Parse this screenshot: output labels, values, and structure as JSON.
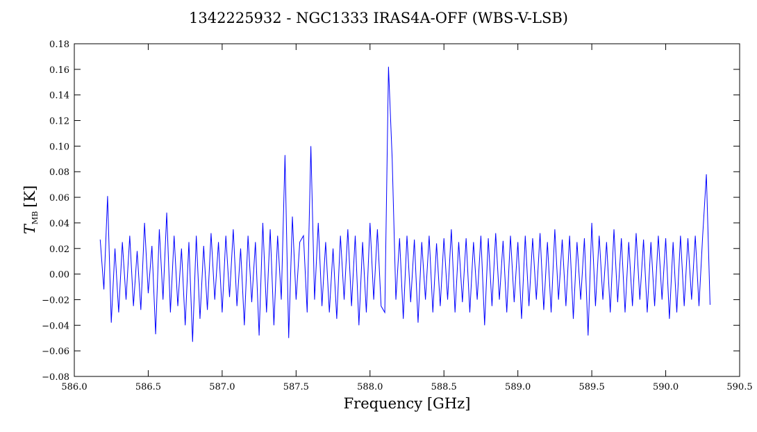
{
  "chart_data": {
    "type": "line",
    "title": "1342225932 - NGC1333 IRAS4A-OFF (WBS-V-LSB)",
    "xlabel": "Frequency [GHz]",
    "ylabel": {
      "symbol": "T",
      "subscript": "MB",
      "unit": "[K]"
    },
    "color": "#0000ff",
    "xlim": [
      586.0,
      590.5
    ],
    "ylim": [
      -0.08,
      0.18
    ],
    "xticks": [
      {
        "value": 586.0,
        "label": "586.0"
      },
      {
        "value": 586.5,
        "label": "586.5"
      },
      {
        "value": 587.0,
        "label": "587.0"
      },
      {
        "value": 587.5,
        "label": "587.5"
      },
      {
        "value": 588.0,
        "label": "588.0"
      },
      {
        "value": 588.5,
        "label": "588.5"
      },
      {
        "value": 589.0,
        "label": "589.0"
      },
      {
        "value": 589.5,
        "label": "589.5"
      },
      {
        "value": 590.0,
        "label": "590.0"
      },
      {
        "value": 590.5,
        "label": "590.5"
      }
    ],
    "yticks": [
      {
        "value": -0.08,
        "label": "−0.08"
      },
      {
        "value": -0.06,
        "label": "−0.06"
      },
      {
        "value": -0.04,
        "label": "−0.04"
      },
      {
        "value": -0.02,
        "label": "−0.02"
      },
      {
        "value": 0,
        "label": "0.00"
      },
      {
        "value": 0.02,
        "label": "0.02"
      },
      {
        "value": 0.04,
        "label": "0.04"
      },
      {
        "value": 0.06,
        "label": "0.06"
      },
      {
        "value": 0.08,
        "label": "0.08"
      },
      {
        "value": 0.1,
        "label": "0.10"
      },
      {
        "value": 0.12,
        "label": "0.12"
      },
      {
        "value": 0.14,
        "label": "0.14"
      },
      {
        "value": 0.16,
        "label": "0.16"
      },
      {
        "value": 0.18,
        "label": "0.18"
      }
    ],
    "x": [
      586.175,
      586.2,
      586.225,
      586.25,
      586.275,
      586.3,
      586.325,
      586.35,
      586.375,
      586.4,
      586.425,
      586.45,
      586.475,
      586.5,
      586.525,
      586.55,
      586.575,
      586.6,
      586.625,
      586.65,
      586.675,
      586.7,
      586.725,
      586.75,
      586.775,
      586.8,
      586.825,
      586.85,
      586.875,
      586.9,
      586.925,
      586.95,
      586.975,
      587.0,
      587.025,
      587.05,
      587.075,
      587.1,
      587.125,
      587.15,
      587.175,
      587.2,
      587.225,
      587.25,
      587.275,
      587.3,
      587.325,
      587.35,
      587.375,
      587.4,
      587.425,
      587.45,
      587.475,
      587.5,
      587.525,
      587.55,
      587.575,
      587.6,
      587.625,
      587.65,
      587.675,
      587.7,
      587.725,
      587.75,
      587.775,
      587.8,
      587.825,
      587.85,
      587.875,
      587.9,
      587.925,
      587.95,
      587.975,
      588.0,
      588.025,
      588.05,
      588.075,
      588.1,
      588.125,
      588.15,
      588.175,
      588.2,
      588.225,
      588.25,
      588.275,
      588.3,
      588.325,
      588.35,
      588.375,
      588.4,
      588.425,
      588.45,
      588.475,
      588.5,
      588.525,
      588.55,
      588.575,
      588.6,
      588.625,
      588.65,
      588.675,
      588.7,
      588.725,
      588.75,
      588.775,
      588.8,
      588.825,
      588.85,
      588.875,
      588.9,
      588.925,
      588.95,
      588.975,
      589.0,
      589.025,
      589.05,
      589.075,
      589.1,
      589.125,
      589.15,
      589.175,
      589.2,
      589.225,
      589.25,
      589.275,
      589.3,
      589.325,
      589.35,
      589.375,
      589.4,
      589.425,
      589.45,
      589.475,
      589.5,
      589.525,
      589.55,
      589.575,
      589.6,
      589.625,
      589.65,
      589.675,
      589.7,
      589.725,
      589.75,
      589.775,
      589.8,
      589.825,
      589.85,
      589.875,
      589.9,
      589.925,
      589.95,
      589.975,
      590.0,
      590.025,
      590.05,
      590.075,
      590.1,
      590.125,
      590.15,
      590.175,
      590.2,
      590.225,
      590.25,
      590.275,
      590.3
    ],
    "values": [
      0.027,
      -0.012,
      0.061,
      -0.038,
      0.02,
      -0.03,
      0.025,
      -0.02,
      0.03,
      -0.025,
      0.018,
      -0.028,
      0.04,
      -0.015,
      0.022,
      -0.047,
      0.035,
      -0.02,
      0.048,
      -0.03,
      0.03,
      -0.025,
      0.02,
      -0.04,
      0.025,
      -0.053,
      0.03,
      -0.035,
      0.022,
      -0.028,
      0.032,
      -0.02,
      0.025,
      -0.03,
      0.03,
      -0.018,
      0.035,
      -0.025,
      0.02,
      -0.04,
      0.03,
      -0.022,
      0.025,
      -0.048,
      0.04,
      -0.03,
      0.035,
      -0.04,
      0.03,
      -0.02,
      0.093,
      -0.05,
      0.045,
      -0.02,
      0.025,
      0.03,
      -0.03,
      0.1,
      -0.02,
      0.04,
      -0.025,
      0.025,
      -0.03,
      0.02,
      -0.035,
      0.03,
      -0.02,
      0.035,
      -0.025,
      0.03,
      -0.04,
      0.025,
      -0.03,
      0.04,
      -0.02,
      0.035,
      -0.025,
      -0.03,
      0.162,
      0.09,
      -0.02,
      0.028,
      -0.035,
      0.03,
      -0.022,
      0.027,
      -0.038,
      0.025,
      -0.02,
      0.03,
      -0.03,
      0.024,
      -0.025,
      0.028,
      -0.02,
      0.035,
      -0.03,
      0.025,
      -0.022,
      0.028,
      -0.03,
      0.025,
      -0.02,
      0.03,
      -0.04,
      0.028,
      -0.025,
      0.032,
      -0.02,
      0.026,
      -0.03,
      0.03,
      -0.022,
      0.025,
      -0.035,
      0.03,
      -0.025,
      0.028,
      -0.02,
      0.032,
      -0.028,
      0.025,
      -0.03,
      0.035,
      -0.02,
      0.027,
      -0.025,
      0.03,
      -0.035,
      0.025,
      -0.02,
      0.028,
      -0.048,
      0.04,
      -0.025,
      0.03,
      -0.02,
      0.025,
      -0.03,
      0.035,
      -0.022,
      0.028,
      -0.03,
      0.025,
      -0.025,
      0.032,
      -0.02,
      0.027,
      -0.03,
      0.025,
      -0.025,
      0.03,
      -0.02,
      0.028,
      -0.035,
      0.025,
      -0.03,
      0.03,
      -0.025,
      0.028,
      -0.02,
      0.03,
      -0.025,
      0.03,
      0.078,
      -0.024
    ]
  }
}
